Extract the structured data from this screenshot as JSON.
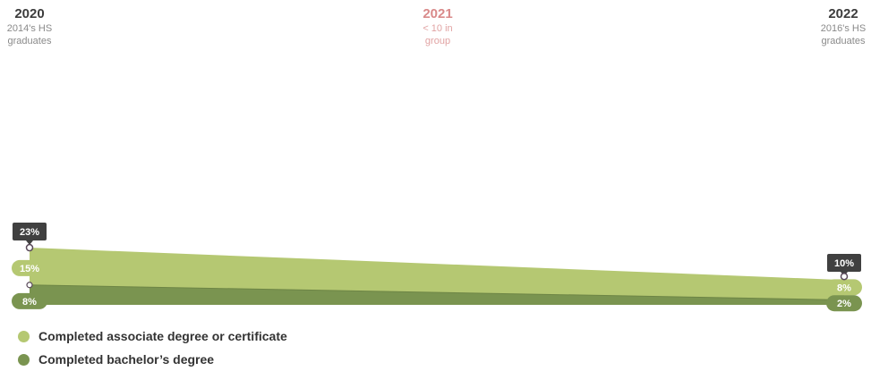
{
  "years": [
    {
      "year": "2020",
      "sub1": "2014's HS",
      "sub2": "graduates",
      "muted": false
    },
    {
      "year": "2021",
      "sub1": "< 10 in",
      "sub2": "group",
      "muted": true
    },
    {
      "year": "2022",
      "sub1": "2016's HS",
      "sub2": "graduates",
      "muted": false
    }
  ],
  "colors": {
    "associate": "#b5c872",
    "bachelor": "#7a9450",
    "total_badge": "#404040",
    "muted_year": "#d98a8a"
  },
  "chart_data": {
    "type": "area",
    "stacked": true,
    "x": [
      "2020",
      "2022"
    ],
    "series": [
      {
        "name": "Completed bachelor’s degree",
        "values": [
          8,
          2
        ],
        "labels": [
          "8%",
          "2%"
        ],
        "color": "#7a9450"
      },
      {
        "name": "Completed associate degree or certificate",
        "values": [
          15,
          8
        ],
        "labels": [
          "15%",
          "8%"
        ],
        "color": "#b5c872"
      }
    ],
    "totals": [
      23,
      10
    ],
    "total_labels": [
      "23%",
      "10%"
    ],
    "ylim": [
      0,
      100
    ]
  },
  "legend": [
    {
      "label": "Completed associate degree or certificate",
      "color": "#b5c872"
    },
    {
      "label": "Completed bachelor’s degree",
      "color": "#7a9450"
    }
  ]
}
